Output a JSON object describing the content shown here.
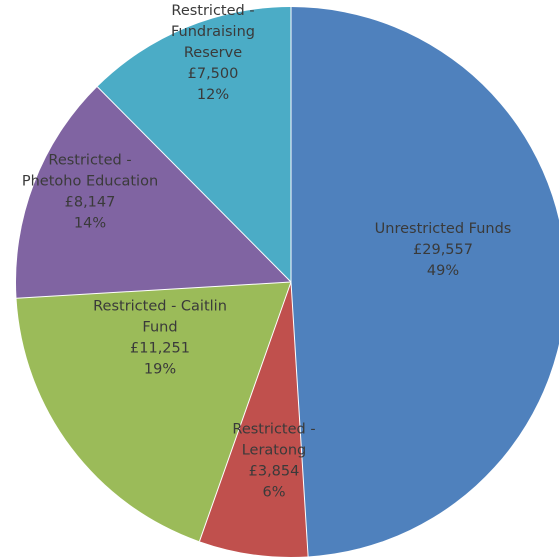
{
  "chart_data": {
    "type": "pie",
    "title": "",
    "start_angle_deg": 0,
    "direction": "clockwise",
    "slices": [
      {
        "lines": [
          "Unrestricted Funds",
          "£29,557",
          "49%"
        ],
        "value": 29557,
        "percent": 49,
        "color": "#4f81bd"
      },
      {
        "lines": [
          "Restricted -",
          "Leratong",
          "£3,854",
          "6%"
        ],
        "value": 3854,
        "percent": 6,
        "color": "#c0504d"
      },
      {
        "lines": [
          "Restricted - Caitlin",
          "Fund",
          "£11,251",
          "19%"
        ],
        "value": 11251,
        "percent": 19,
        "color": "#9bbb59"
      },
      {
        "lines": [
          "Restricted -",
          "Phetoho Education",
          "£8,147",
          "14%"
        ],
        "value": 8147,
        "percent": 14,
        "color": "#8064a2"
      },
      {
        "lines": [
          "Restricted -",
          "Fundraising",
          "Reserve",
          "£7,500",
          "12%"
        ],
        "value": 7500,
        "percent": 12,
        "color": "#4bacc6"
      }
    ]
  }
}
